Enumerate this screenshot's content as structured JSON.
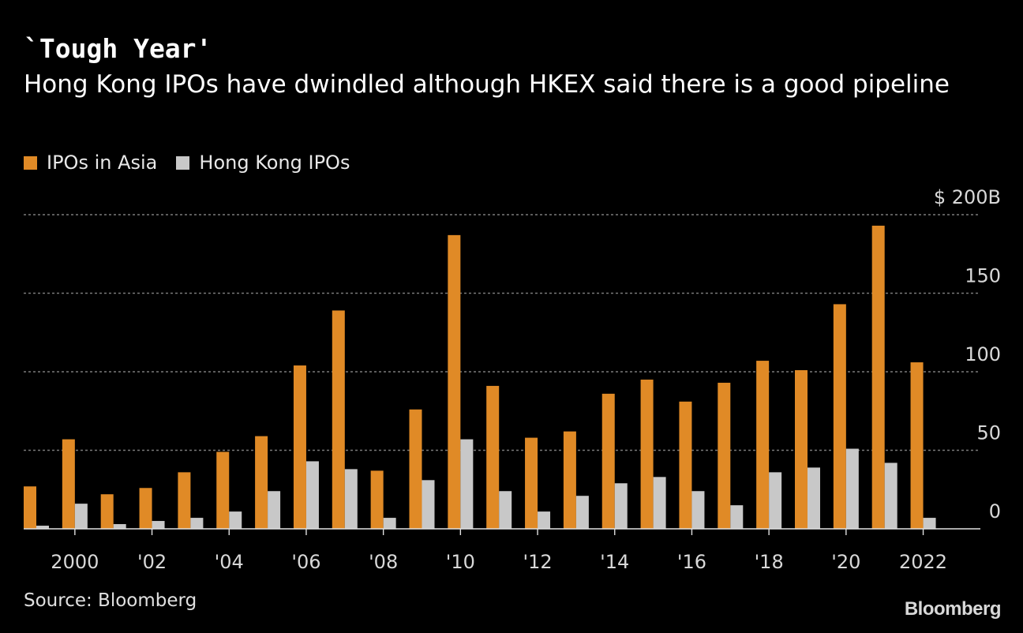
{
  "title": "`Tough Year'",
  "subtitle": "Hong Kong IPOs have dwindled although HKEX said there is a good pipeline",
  "legend": [
    {
      "label": "IPOs in Asia",
      "color": "#e08a26"
    },
    {
      "label": "Hong Kong IPOs",
      "color": "#c8c8c8"
    }
  ],
  "source": "Source: Bloomberg",
  "brand": "Bloomberg",
  "chart_data": {
    "type": "bar",
    "title": "`Tough Year'",
    "unit_label": "$ 200B",
    "ylim": [
      0,
      200
    ],
    "yticks": [
      0,
      50,
      100,
      150,
      200
    ],
    "ytick_labels": [
      "0",
      "50",
      "100",
      "150",
      "$ 200B"
    ],
    "grid": true,
    "legend_position": "top-left",
    "categories": [
      1999,
      2000,
      2001,
      2002,
      2003,
      2004,
      2005,
      2006,
      2007,
      2008,
      2009,
      2010,
      2011,
      2012,
      2013,
      2014,
      2015,
      2016,
      2017,
      2018,
      2019,
      2020,
      2021,
      2022
    ],
    "xtick_labels": [
      {
        "year": 2000,
        "label": "2000"
      },
      {
        "year": 2002,
        "label": "'02"
      },
      {
        "year": 2004,
        "label": "'04"
      },
      {
        "year": 2006,
        "label": "'06"
      },
      {
        "year": 2008,
        "label": "'08"
      },
      {
        "year": 2010,
        "label": "'10"
      },
      {
        "year": 2012,
        "label": "'12"
      },
      {
        "year": 2014,
        "label": "'14"
      },
      {
        "year": 2016,
        "label": "'16"
      },
      {
        "year": 2018,
        "label": "'18"
      },
      {
        "year": 2020,
        "label": "'20"
      },
      {
        "year": 2022,
        "label": "2022"
      }
    ],
    "series": [
      {
        "name": "IPOs in Asia",
        "color": "#e08a26",
        "values": [
          27,
          57,
          22,
          26,
          36,
          49,
          59,
          104,
          139,
          37,
          76,
          187,
          91,
          58,
          62,
          86,
          95,
          81,
          93,
          107,
          101,
          143,
          193,
          106
        ]
      },
      {
        "name": "Hong Kong IPOs",
        "color": "#c8c8c8",
        "values": [
          2,
          16,
          3,
          5,
          7,
          11,
          24,
          43,
          38,
          7,
          31,
          57,
          24,
          11,
          21,
          29,
          33,
          24,
          15,
          36,
          39,
          51,
          42,
          7
        ]
      }
    ]
  }
}
